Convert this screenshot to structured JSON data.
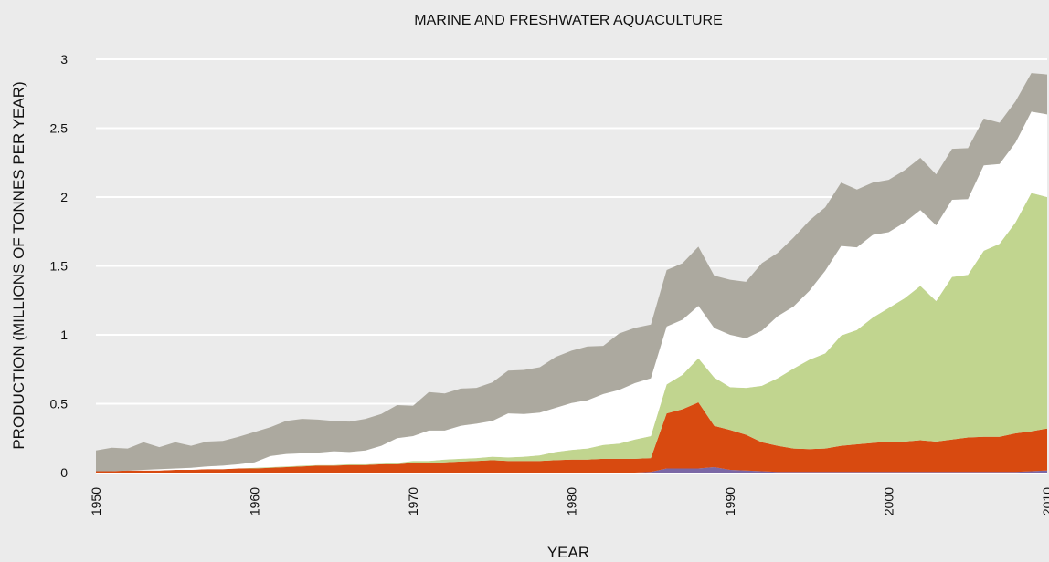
{
  "chart_data": {
    "type": "area",
    "stacked": true,
    "title": "MARINE AND FRESHWATER AQUACULTURE",
    "xlabel": "YEAR",
    "ylabel": "PRODUCTION (MILLIONS OF TONNES PER YEAR)",
    "xlim": [
      1950,
      2010
    ],
    "ylim": [
      0,
      3
    ],
    "grid": true,
    "legend": "none",
    "x_ticks": [
      "1950",
      "1960",
      "1970",
      "1980",
      "1990",
      "2000",
      "2010"
    ],
    "y_ticks": [
      "0",
      "0.5",
      "1",
      "1.5",
      "2",
      "2.5",
      "3"
    ],
    "y_tick_values": [
      0,
      0.5,
      1,
      1.5,
      2,
      2.5,
      3
    ],
    "x_tick_values": [
      1950,
      1960,
      1970,
      1980,
      1990,
      2000,
      2010
    ],
    "x": [
      1950,
      1951,
      1952,
      1953,
      1954,
      1955,
      1956,
      1957,
      1958,
      1959,
      1960,
      1961,
      1962,
      1963,
      1964,
      1965,
      1966,
      1967,
      1968,
      1969,
      1970,
      1971,
      1972,
      1973,
      1974,
      1975,
      1976,
      1977,
      1978,
      1979,
      1980,
      1981,
      1982,
      1983,
      1984,
      1985,
      1986,
      1987,
      1988,
      1989,
      1990,
      1991,
      1992,
      1993,
      1994,
      1995,
      1996,
      1997,
      1998,
      1999,
      2000,
      2001,
      2002,
      2003,
      2004,
      2005,
      2006,
      2007,
      2008,
      2009,
      2010
    ],
    "series": [
      {
        "color": "#7b68a6",
        "values": [
          0,
          0,
          0,
          0,
          0,
          0,
          0,
          0,
          0,
          0,
          0,
          0,
          0,
          0,
          0,
          0,
          0,
          0,
          0,
          0,
          0,
          0,
          0,
          0,
          0,
          0,
          0,
          0,
          0,
          0,
          0,
          0,
          0,
          0,
          0,
          0.005,
          0.03,
          0.03,
          0.03,
          0.04,
          0.02,
          0.015,
          0.01,
          0.005,
          0.005,
          0.005,
          0.005,
          0.005,
          0.005,
          0.005,
          0.005,
          0.005,
          0.005,
          0.005,
          0.005,
          0.005,
          0.005,
          0.005,
          0.005,
          0.01,
          0.015
        ]
      },
      {
        "color": "#d84a10",
        "values": [
          0.01,
          0.01,
          0.015,
          0.015,
          0.015,
          0.02,
          0.02,
          0.025,
          0.025,
          0.03,
          0.03,
          0.035,
          0.04,
          0.045,
          0.05,
          0.05,
          0.055,
          0.055,
          0.06,
          0.06,
          0.07,
          0.07,
          0.075,
          0.08,
          0.085,
          0.09,
          0.085,
          0.085,
          0.085,
          0.09,
          0.095,
          0.095,
          0.1,
          0.1,
          0.1,
          0.1,
          0.4,
          0.43,
          0.48,
          0.3,
          0.29,
          0.26,
          0.21,
          0.19,
          0.17,
          0.165,
          0.17,
          0.19,
          0.2,
          0.21,
          0.22,
          0.22,
          0.23,
          0.22,
          0.235,
          0.25,
          0.255,
          0.255,
          0.28,
          0.29,
          0.305
        ]
      },
      {
        "color": "#c1d58f",
        "values": [
          0,
          0,
          0,
          0,
          0,
          0,
          0,
          0,
          0,
          0,
          0.005,
          0.005,
          0.005,
          0.005,
          0.005,
          0.005,
          0.005,
          0.005,
          0.005,
          0.01,
          0.015,
          0.015,
          0.02,
          0.02,
          0.02,
          0.025,
          0.025,
          0.03,
          0.04,
          0.06,
          0.07,
          0.08,
          0.1,
          0.11,
          0.14,
          0.16,
          0.21,
          0.25,
          0.32,
          0.35,
          0.31,
          0.34,
          0.41,
          0.49,
          0.58,
          0.65,
          0.69,
          0.8,
          0.83,
          0.91,
          0.97,
          1.04,
          1.12,
          1.02,
          1.18,
          1.18,
          1.35,
          1.4,
          1.53,
          1.73,
          1.68
        ]
      },
      {
        "color": "#ffffff",
        "values": [
          0,
          0,
          0,
          0.005,
          0.01,
          0.01,
          0.015,
          0.02,
          0.025,
          0.03,
          0.04,
          0.08,
          0.09,
          0.09,
          0.09,
          0.1,
          0.09,
          0.1,
          0.13,
          0.18,
          0.18,
          0.22,
          0.21,
          0.24,
          0.25,
          0.26,
          0.32,
          0.31,
          0.31,
          0.32,
          0.34,
          0.35,
          0.37,
          0.39,
          0.41,
          0.42,
          0.42,
          0.4,
          0.38,
          0.36,
          0.38,
          0.36,
          0.4,
          0.45,
          0.45,
          0.5,
          0.6,
          0.65,
          0.6,
          0.6,
          0.55,
          0.55,
          0.55,
          0.55,
          0.56,
          0.55,
          0.62,
          0.58,
          0.58,
          0.59,
          0.6
        ]
      },
      {
        "color": "#aca99f",
        "values": [
          0.15,
          0.17,
          0.16,
          0.2,
          0.16,
          0.19,
          0.16,
          0.18,
          0.18,
          0.2,
          0.22,
          0.21,
          0.24,
          0.25,
          0.24,
          0.22,
          0.22,
          0.23,
          0.23,
          0.24,
          0.22,
          0.28,
          0.27,
          0.27,
          0.26,
          0.28,
          0.31,
          0.32,
          0.33,
          0.37,
          0.38,
          0.39,
          0.35,
          0.41,
          0.4,
          0.39,
          0.41,
          0.41,
          0.43,
          0.38,
          0.4,
          0.41,
          0.49,
          0.46,
          0.5,
          0.51,
          0.46,
          0.46,
          0.42,
          0.38,
          0.38,
          0.38,
          0.38,
          0.37,
          0.37,
          0.37,
          0.34,
          0.3,
          0.3,
          0.28,
          0.29
        ]
      }
    ]
  }
}
